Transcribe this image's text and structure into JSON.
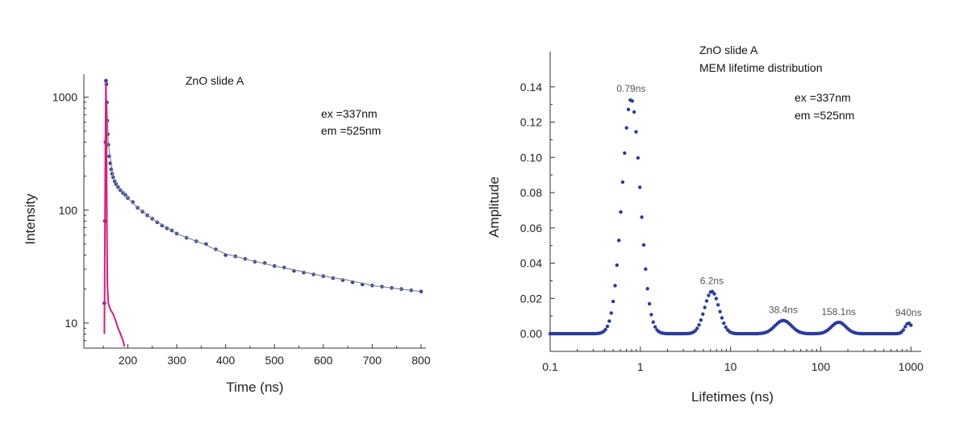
{
  "chart_data": [
    {
      "type": "scatter",
      "title": "ZnO slide A",
      "annotations": [
        "ex  =337nm",
        "em =525nm"
      ],
      "xlabel": "Time (ns)",
      "ylabel": "Intensity",
      "xlim": [
        110,
        810
      ],
      "ylim": [
        6,
        1600
      ],
      "yscale": "log",
      "xticks": [
        200,
        300,
        400,
        500,
        600,
        700,
        800
      ],
      "yticks": [
        10,
        100,
        1000
      ],
      "grid": false,
      "colors": {
        "data": "#2b3a9e",
        "fit": "#8a8a8a",
        "irf": "#e0197a"
      },
      "series": [
        {
          "role": "decay data",
          "style": "points",
          "x": [
            152,
            153,
            154,
            155,
            156,
            157,
            158,
            159,
            160,
            162,
            164,
            166,
            168,
            170,
            173,
            176,
            180,
            185,
            190,
            195,
            200,
            210,
            220,
            230,
            240,
            250,
            260,
            270,
            280,
            290,
            300,
            320,
            340,
            360,
            380,
            400,
            420,
            440,
            460,
            480,
            500,
            520,
            540,
            560,
            580,
            600,
            620,
            640,
            660,
            680,
            700,
            720,
            740,
            760,
            780,
            800
          ],
          "y": [
            15,
            80,
            400,
            1400,
            1300,
            900,
            620,
            470,
            380,
            300,
            260,
            230,
            210,
            195,
            180,
            170,
            160,
            150,
            142,
            136,
            128,
            118,
            105,
            97,
            90,
            84,
            78,
            73,
            69,
            66,
            62,
            57,
            53,
            50,
            45,
            40,
            39,
            37,
            35,
            34,
            32,
            31,
            29,
            28,
            27,
            26,
            25,
            24,
            23,
            22,
            21.5,
            21,
            20.5,
            20,
            19.5,
            19
          ]
        },
        {
          "role": "fit",
          "style": "line",
          "x": [
            157,
            160,
            170,
            180,
            200,
            220,
            250,
            300,
            350,
            400,
            450,
            500,
            550,
            600,
            650,
            700,
            750,
            800
          ],
          "y": [
            900,
            380,
            195,
            160,
            128,
            105,
            84,
            62,
            51,
            41,
            36,
            32,
            29,
            26,
            24,
            21.5,
            20.2,
            19
          ]
        },
        {
          "role": "IRF",
          "style": "line",
          "x": [
            152,
            153,
            154,
            155,
            156,
            157,
            158,
            160,
            162,
            165,
            170,
            175,
            180,
            185,
            190,
            193
          ],
          "y": [
            8,
            50,
            400,
            1350,
            600,
            80,
            22,
            15,
            14,
            13,
            12,
            10.5,
            9,
            8,
            7,
            6.2
          ]
        }
      ]
    },
    {
      "type": "scatter",
      "title": "ZnO slide A",
      "subtitle": "MEM lifetime distribution",
      "annotations": [
        "ex  =337nm",
        "em =525nm"
      ],
      "xlabel": "Lifetimes (ns)",
      "ylabel": "Amplitude",
      "xlim": [
        0.1,
        1300
      ],
      "ylim": [
        -0.01,
        0.16
      ],
      "xscale": "log",
      "xticks": [
        0.1,
        1,
        10,
        100,
        1000
      ],
      "xtick_labels": [
        "0.1",
        "1",
        "10",
        "100",
        "1000"
      ],
      "yticks": [
        0.0,
        0.02,
        0.04,
        0.06,
        0.08,
        0.1,
        0.12,
        0.14
      ],
      "ytick_labels": [
        "0.00",
        "0.02",
        "0.04",
        "0.06",
        "0.08",
        "0.10",
        "0.12",
        "0.14"
      ],
      "grid": false,
      "colors": {
        "data": "#2b3a9e"
      },
      "peaks": [
        {
          "label": "0.79ns",
          "center": 0.79,
          "amplitude": 0.133
        },
        {
          "label": "6.2ns",
          "center": 6.2,
          "amplitude": 0.024
        },
        {
          "label": "38.4ns",
          "center": 38.4,
          "amplitude": 0.0075
        },
        {
          "label": "158.1ns",
          "center": 158.1,
          "amplitude": 0.0065
        },
        {
          "label": "940ns",
          "center": 940,
          "amplitude": 0.006
        }
      ],
      "peak_width_decades": [
        0.1,
        0.08,
        0.09,
        0.08,
        0.04
      ],
      "sample_range": [
        0.1,
        1000
      ],
      "sample_count": 190
    }
  ]
}
